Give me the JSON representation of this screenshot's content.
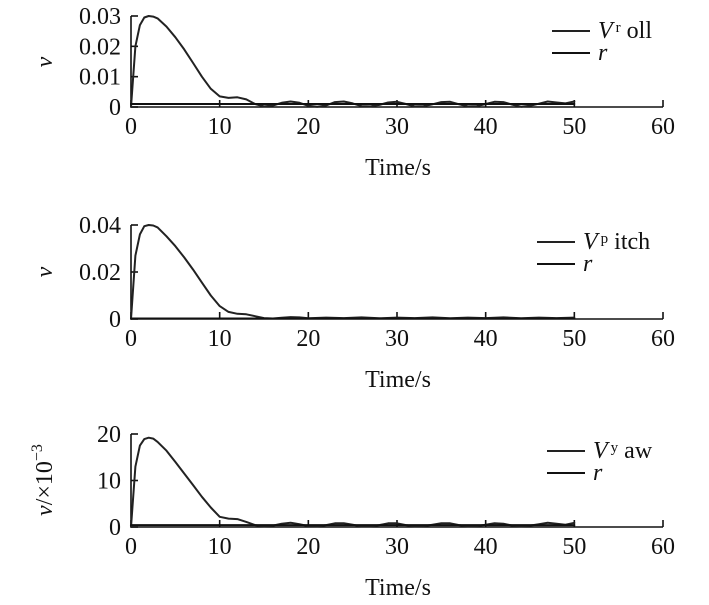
{
  "colors": {
    "ink": "#111111",
    "series": "#222222",
    "background": "#ffffff"
  },
  "chart_data": [
    {
      "type": "line",
      "xlabel": "Time/s",
      "ylabel": "v",
      "ylabel_unit": "",
      "xlim": [
        0,
        60
      ],
      "ylim": [
        0,
        0.03
      ],
      "xticks": [
        0,
        10,
        20,
        30,
        40,
        50,
        60
      ],
      "xtick_labels": [
        "0",
        "10",
        "20",
        "30",
        "40",
        "50",
        "60"
      ],
      "yticks": [
        0,
        0.01,
        0.02,
        0.03
      ],
      "ytick_labels": [
        "0",
        "0.01",
        "0.02",
        "0.03"
      ],
      "grid": false,
      "legend_position": "top-right",
      "legend": [
        {
          "symbol": "V",
          "subscript": "r",
          "suffix": "oll"
        },
        {
          "symbol": "r",
          "subscript": "",
          "suffix": ""
        }
      ],
      "series": [
        {
          "x": [
            0,
            0.5,
            1,
            1.5,
            2,
            2.5,
            3,
            4,
            5,
            6,
            7,
            8,
            9,
            10,
            11,
            12,
            13,
            14,
            15,
            16,
            17,
            18,
            19,
            20,
            21,
            22,
            23,
            24,
            25,
            26,
            27,
            28,
            29,
            30,
            31,
            32,
            33,
            34,
            35,
            36,
            37,
            38,
            39,
            40,
            41,
            42,
            43,
            44,
            45,
            46,
            47,
            48,
            49,
            50
          ],
          "y": [
            0,
            0.02,
            0.027,
            0.0295,
            0.03,
            0.0298,
            0.0292,
            0.0265,
            0.023,
            0.019,
            0.0145,
            0.01,
            0.006,
            0.0035,
            0.003,
            0.0032,
            0.0025,
            0.001,
            0.0002,
            0.0005,
            0.0014,
            0.0018,
            0.0014,
            0.0004,
            0.0001,
            0.0005,
            0.0016,
            0.0018,
            0.0012,
            0.0003,
            0.0002,
            0.0007,
            0.0015,
            0.0017,
            0.001,
            0.0002,
            0.0003,
            0.0009,
            0.0016,
            0.0017,
            0.0009,
            0.0002,
            0.0003,
            0.001,
            0.0017,
            0.0016,
            0.0008,
            0.0001,
            0.0004,
            0.0011,
            0.0018,
            0.0015,
            0.0012,
            0.0018
          ]
        },
        {
          "x": [
            0,
            50
          ],
          "y": [
            0.001,
            0.001
          ]
        }
      ]
    },
    {
      "type": "line",
      "xlabel": "Time/s",
      "ylabel": "v",
      "ylabel_unit": "",
      "xlim": [
        0,
        60
      ],
      "ylim": [
        0,
        0.04
      ],
      "xticks": [
        0,
        10,
        20,
        30,
        40,
        50,
        60
      ],
      "xtick_labels": [
        "0",
        "10",
        "20",
        "30",
        "40",
        "50",
        "60"
      ],
      "yticks": [
        0,
        0.02,
        0.04
      ],
      "ytick_labels": [
        "0",
        "0.02",
        "0.04"
      ],
      "grid": false,
      "legend_position": "top-right",
      "legend": [
        {
          "symbol": "V",
          "subscript": "p",
          "suffix": "itch"
        },
        {
          "symbol": "r",
          "subscript": "",
          "suffix": ""
        }
      ],
      "series": [
        {
          "x": [
            0,
            0.5,
            1,
            1.5,
            2,
            2.5,
            3,
            4,
            5,
            6,
            7,
            8,
            9,
            10,
            11,
            12,
            13,
            14,
            15,
            16,
            17,
            18,
            19,
            20,
            22,
            24,
            26,
            28,
            30,
            32,
            34,
            36,
            38,
            40,
            42,
            44,
            46,
            48,
            50
          ],
          "y": [
            0,
            0.027,
            0.036,
            0.0395,
            0.04,
            0.0398,
            0.039,
            0.0352,
            0.031,
            0.0262,
            0.021,
            0.0155,
            0.01,
            0.0055,
            0.003,
            0.0022,
            0.002,
            0.0012,
            0.0004,
            0.0002,
            0.0005,
            0.0008,
            0.0007,
            0.0003,
            0.0006,
            0.0004,
            0.0007,
            0.0003,
            0.0006,
            0.0004,
            0.0007,
            0.0003,
            0.0006,
            0.0004,
            0.0007,
            0.0003,
            0.0006,
            0.0004,
            0.0006
          ]
        },
        {
          "x": [
            0,
            50
          ],
          "y": [
            0.0002,
            0.0002
          ]
        }
      ]
    },
    {
      "type": "line",
      "xlabel": "Time/s",
      "ylabel": "v",
      "ylabel_unit": "/×10",
      "ylabel_exponent": "−3",
      "xlim": [
        0,
        60
      ],
      "ylim": [
        0,
        20
      ],
      "xticks": [
        0,
        10,
        20,
        30,
        40,
        50,
        60
      ],
      "xtick_labels": [
        "0",
        "10",
        "20",
        "30",
        "40",
        "50",
        "60"
      ],
      "yticks": [
        0,
        10,
        20
      ],
      "ytick_labels": [
        "0",
        "10",
        "20"
      ],
      "grid": false,
      "legend_position": "top-right",
      "legend": [
        {
          "symbol": "V",
          "subscript": "y",
          "suffix": "aw"
        },
        {
          "symbol": "r",
          "subscript": "",
          "suffix": ""
        }
      ],
      "series": [
        {
          "x": [
            0,
            0.5,
            1,
            1.5,
            2,
            2.5,
            3,
            4,
            5,
            6,
            7,
            8,
            9,
            10,
            11,
            12,
            13,
            14,
            15,
            16,
            17,
            18,
            19,
            20,
            21,
            22,
            23,
            24,
            25,
            26,
            27,
            28,
            29,
            30,
            31,
            32,
            33,
            34,
            35,
            36,
            37,
            38,
            39,
            40,
            41,
            42,
            43,
            44,
            45,
            46,
            47,
            48,
            49,
            50
          ],
          "y": [
            0,
            13,
            17.5,
            18.9,
            19.2,
            19,
            18.3,
            16.4,
            14,
            11.5,
            9,
            6.5,
            4.2,
            2.2,
            1.8,
            1.7,
            1.1,
            0.4,
            0.1,
            0.3,
            0.7,
            0.9,
            0.6,
            0.2,
            0.1,
            0.4,
            0.8,
            0.8,
            0.5,
            0.1,
            0.1,
            0.4,
            0.8,
            0.8,
            0.4,
            0.1,
            0.2,
            0.5,
            0.8,
            0.8,
            0.4,
            0.1,
            0.2,
            0.5,
            0.8,
            0.7,
            0.3,
            0.1,
            0.3,
            0.6,
            0.9,
            0.7,
            0.5,
            0.9
          ]
        },
        {
          "x": [
            0,
            50
          ],
          "y": [
            0.4,
            0.4
          ]
        }
      ]
    }
  ]
}
